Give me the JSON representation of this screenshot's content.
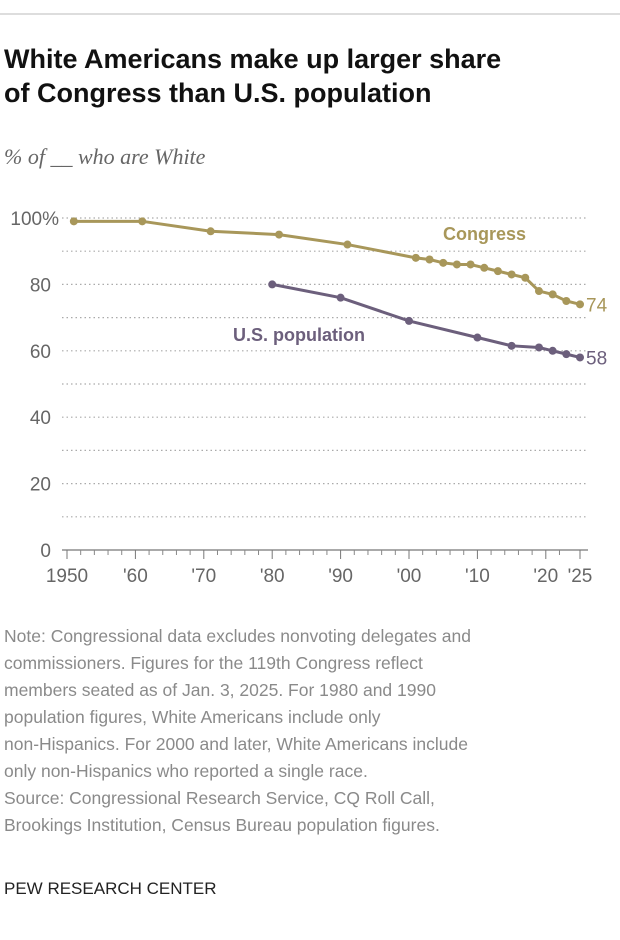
{
  "chart_data": {
    "type": "line",
    "title_lines": [
      "White Americans make up larger share",
      "of Congress than U.S. population"
    ],
    "subtitle": "% of __ who are White",
    "ylim": [
      0,
      100
    ],
    "yticks": [
      0,
      20,
      40,
      60,
      80,
      {
        "value": 100,
        "label": "100%"
      }
    ],
    "y_minor_grid": [
      10,
      30,
      50,
      70,
      90
    ],
    "xlim": [
      1950,
      2025
    ],
    "xticks": [
      1950,
      {
        "value": 1960,
        "label": "'60"
      },
      {
        "value": 1970,
        "label": "'70"
      },
      {
        "value": 1980,
        "label": "'80"
      },
      {
        "value": 1990,
        "label": "'90"
      },
      {
        "value": 2000,
        "label": "'00"
      },
      {
        "value": 2010,
        "label": "'10"
      },
      {
        "value": 2020,
        "label": "'20"
      },
      {
        "value": 2025,
        "label": "'25"
      }
    ],
    "x_minor_ticks": [
      1952,
      1954,
      1956,
      1958,
      1962,
      1964,
      1966,
      1968,
      1972,
      1974,
      1976,
      1978,
      1982,
      1984,
      1986,
      1988,
      1992,
      1994,
      1996,
      1998,
      2002,
      2004,
      2006,
      2008,
      2012,
      2014,
      2016,
      2018,
      2022
    ],
    "series": [
      {
        "name": "Congress",
        "color": "#a8975a",
        "x": [
          1951,
          1961,
          1971,
          1981,
          1991,
          2001,
          2003,
          2005,
          2007,
          2009,
          2011,
          2013,
          2015,
          2017,
          2019,
          2021,
          2023,
          2025
        ],
        "values": [
          99,
          99,
          96,
          95,
          92,
          88,
          87.5,
          86.5,
          86,
          86,
          85,
          84,
          83,
          82,
          78,
          77,
          75,
          74
        ]
      },
      {
        "name": "U.S. population",
        "color": "#6c5f7c",
        "x": [
          1980,
          1990,
          2000,
          2010,
          2015,
          2019,
          2021,
          2023,
          2025
        ],
        "values": [
          80,
          76,
          69,
          64,
          61.5,
          61,
          60,
          59,
          58
        ]
      }
    ],
    "note_lines": [
      "Note: Congressional data excludes nonvoting delegates and",
      "commissioners. Figures for the 119th Congress reflect",
      "members seated as of Jan. 3, 2025. For 1980 and 1990",
      "population figures, White Americans include only",
      "non-Hispanics. For 2000 and later, White Americans include",
      "only non-Hispanics who reported a single race."
    ],
    "source_lines": [
      "Source: Congressional Research Service, CQ Roll Call,",
      "Brookings Institution, Census Bureau population figures."
    ],
    "footer": "PEW RESEARCH CENTER"
  }
}
